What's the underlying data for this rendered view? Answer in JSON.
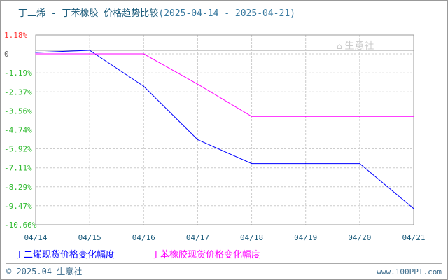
{
  "title": {
    "main": "丁二烯 - 丁苯橡胶 价格趋势比较",
    "dates": "(2025-04-14 - 2025-04-21)"
  },
  "chart_data": {
    "type": "line",
    "title": "丁二烯 - 丁苯橡胶 价格趋势比较(2025-04-14 - 2025-04-21)",
    "categories": [
      "04/14",
      "04/15",
      "04/16",
      "04/17",
      "04/18",
      "04/19",
      "04/20",
      "04/21"
    ],
    "yticks": [
      "1.18%",
      "0",
      "-1.19%",
      "-2.37%",
      "-3.56%",
      "-4.74%",
      "-5.92%",
      "-7.11%",
      "-8.29%",
      "-9.47%",
      "-10.66%"
    ],
    "ylim": [
      -10.66,
      1.18
    ],
    "grid": true,
    "legend_position": "bottom",
    "series": [
      {
        "name": "丁二烯现货价格变化幅度",
        "color": "#0000ff",
        "values": [
          0.09,
          0.22,
          -2.02,
          -5.35,
          -6.84,
          -6.84,
          -6.84,
          -9.65
        ]
      },
      {
        "name": "丁苯橡胶现货价格变化幅度",
        "color": "#ff00ff",
        "values": [
          0.0,
          0.0,
          0.0,
          -1.89,
          -3.9,
          -3.9,
          -3.9,
          -3.9
        ]
      }
    ]
  },
  "logo": {
    "text": "生意社",
    "sub": "100PPI.COM"
  },
  "footer": {
    "copyright": "© 2025.04 生意社",
    "site": "www.100PPI.com"
  }
}
